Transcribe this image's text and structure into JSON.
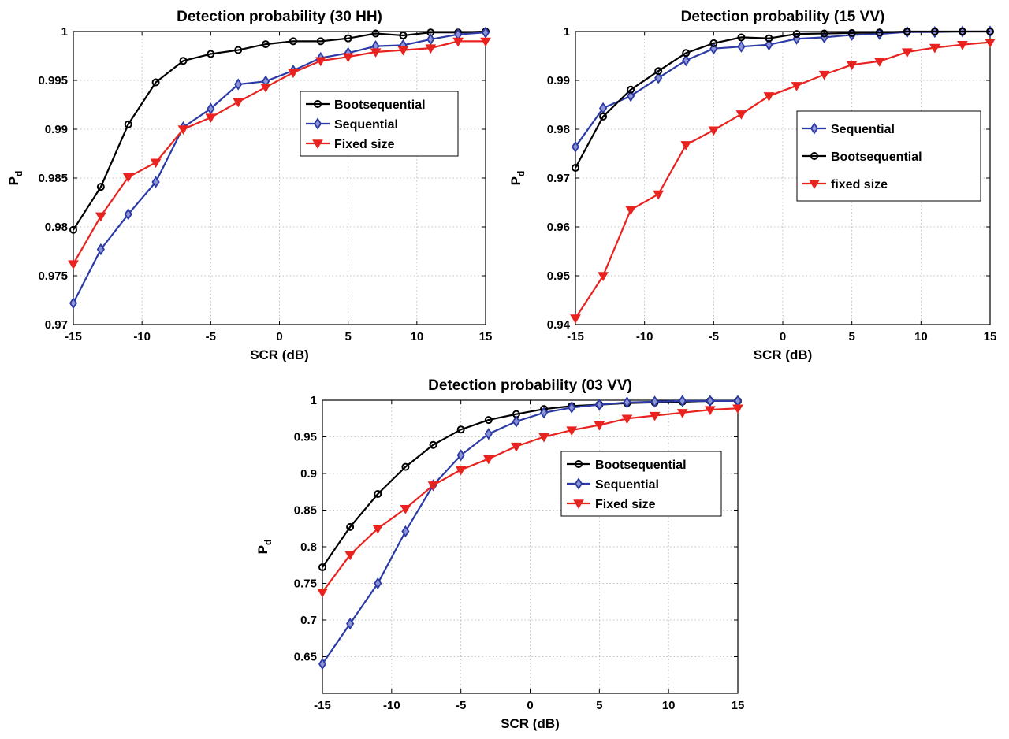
{
  "chart_data": [
    {
      "type": "line",
      "title": "Detection probability (30 HH)",
      "xlabel": "SCR (dB)",
      "ylabel": "P",
      "ylabel_sub": "d",
      "xlim": [
        -15,
        15
      ],
      "ylim": [
        0.97,
        1
      ],
      "xticks": [
        -15,
        -10,
        -5,
        0,
        5,
        10,
        15
      ],
      "yticks": [
        0.97,
        0.975,
        0.98,
        0.985,
        0.99,
        0.995,
        1
      ],
      "ytick_labels": [
        "0.97",
        "0.975",
        "0.98",
        "0.985",
        "0.99",
        "0.995",
        "1"
      ],
      "grid": true,
      "legend_position": "center-right",
      "series": [
        {
          "name": "Bootsequential",
          "color": "#000000",
          "marker": "circle",
          "x": [
            -15,
            -13,
            -11,
            -9,
            -7,
            -5,
            -3,
            -1,
            1,
            3,
            5,
            7,
            9,
            11,
            13,
            15
          ],
          "y": [
            0.9797,
            0.9841,
            0.9905,
            0.9948,
            0.997,
            0.9977,
            0.9981,
            0.9987,
            0.999,
            0.999,
            0.9993,
            0.9998,
            0.9996,
            0.9999,
            0.9999,
            1.0
          ]
        },
        {
          "name": "Sequential",
          "color": "#2b3aa5",
          "marker": "diamond",
          "x": [
            -15,
            -13,
            -11,
            -9,
            -7,
            -5,
            -3,
            -1,
            1,
            3,
            5,
            7,
            9,
            11,
            13,
            15
          ],
          "y": [
            0.9722,
            0.9777,
            0.9813,
            0.9846,
            0.9902,
            0.9921,
            0.9946,
            0.9949,
            0.996,
            0.9973,
            0.9978,
            0.9985,
            0.9986,
            0.9992,
            0.9997,
            0.9999
          ]
        },
        {
          "name": "Fixed size",
          "color": "#e8231f",
          "marker": "triangle-down",
          "x": [
            -15,
            -13,
            -11,
            -9,
            -7,
            -5,
            -3,
            -1,
            1,
            3,
            5,
            7,
            9,
            11,
            13,
            15
          ],
          "y": [
            0.9762,
            0.9811,
            0.9851,
            0.9866,
            0.99,
            0.9912,
            0.9928,
            0.9943,
            0.9958,
            0.997,
            0.9974,
            0.9979,
            0.9981,
            0.9983,
            0.999,
            0.999
          ]
        }
      ]
    },
    {
      "type": "line",
      "title": "Detection probability (15 VV)",
      "xlabel": "SCR (dB)",
      "ylabel": "P",
      "ylabel_sub": "d",
      "xlim": [
        -15,
        15
      ],
      "ylim": [
        0.94,
        1
      ],
      "xticks": [
        -15,
        -10,
        -5,
        0,
        5,
        10,
        15
      ],
      "yticks": [
        0.94,
        0.95,
        0.96,
        0.97,
        0.98,
        0.99,
        1
      ],
      "ytick_labels": [
        "0.94",
        "0.95",
        "0.96",
        "0.97",
        "0.98",
        "0.99",
        "1"
      ],
      "grid": true,
      "legend_position": "center-right",
      "series": [
        {
          "name": "Sequential",
          "color": "#2b3aa5",
          "marker": "diamond",
          "x": [
            -15,
            -13,
            -11,
            -9,
            -7,
            -5,
            -3,
            -1,
            1,
            3,
            5,
            7,
            9,
            11,
            13,
            15
          ],
          "y": [
            0.9764,
            0.9843,
            0.9868,
            0.9905,
            0.9941,
            0.9965,
            0.9969,
            0.9973,
            0.9985,
            0.9988,
            0.9993,
            0.9995,
            0.9999,
            0.9999,
            1.0,
            1.0
          ]
        },
        {
          "name": "Bootsequential",
          "color": "#000000",
          "marker": "circle",
          "x": [
            -15,
            -13,
            -11,
            -9,
            -7,
            -5,
            -3,
            -1,
            1,
            3,
            5,
            7,
            9,
            11,
            13,
            15
          ],
          "y": [
            0.9721,
            0.9826,
            0.9881,
            0.9919,
            0.9956,
            0.9976,
            0.9988,
            0.9986,
            0.9995,
            0.9996,
            0.9997,
            0.9998,
            1.0,
            1.0,
            1.0,
            1.0
          ]
        },
        {
          "name": "fixed size",
          "color": "#e8231f",
          "marker": "triangle-down",
          "x": [
            -15,
            -13,
            -11,
            -9,
            -7,
            -5,
            -3,
            -1,
            1,
            3,
            5,
            7,
            9,
            11,
            13,
            15
          ],
          "y": [
            0.9413,
            0.95,
            0.9635,
            0.9667,
            0.9768,
            0.9798,
            0.9831,
            0.9868,
            0.9889,
            0.9912,
            0.9932,
            0.9939,
            0.9958,
            0.9967,
            0.9973,
            0.9978
          ]
        }
      ]
    },
    {
      "type": "line",
      "title": "Detection probability (03 VV)",
      "xlabel": "SCR (dB)",
      "ylabel": "P",
      "ylabel_sub": "d",
      "xlim": [
        -15,
        15
      ],
      "ylim": [
        0.6,
        1
      ],
      "xticks": [
        -15,
        -10,
        -5,
        0,
        5,
        10,
        15
      ],
      "yticks": [
        0.65,
        0.7,
        0.75,
        0.8,
        0.85,
        0.9,
        0.95,
        1
      ],
      "ytick_labels": [
        "0.65",
        "0.7",
        "0.75",
        "0.8",
        "0.85",
        "0.9",
        "0.95",
        "1"
      ],
      "grid": true,
      "legend_position": "center-right",
      "series": [
        {
          "name": "Bootsequential",
          "color": "#000000",
          "marker": "circle",
          "x": [
            -15,
            -13,
            -11,
            -9,
            -7,
            -5,
            -3,
            -1,
            1,
            3,
            5,
            7,
            9,
            11,
            13,
            15
          ],
          "y": [
            0.772,
            0.827,
            0.872,
            0.909,
            0.939,
            0.96,
            0.973,
            0.981,
            0.988,
            0.992,
            0.994,
            0.996,
            0.997,
            0.998,
            0.999,
            0.999
          ]
        },
        {
          "name": "Sequential",
          "color": "#2b3aa5",
          "marker": "diamond",
          "x": [
            -15,
            -13,
            -11,
            -9,
            -7,
            -5,
            -3,
            -1,
            1,
            3,
            5,
            7,
            9,
            11,
            13,
            15
          ],
          "y": [
            0.64,
            0.695,
            0.75,
            0.821,
            0.884,
            0.925,
            0.954,
            0.971,
            0.983,
            0.99,
            0.994,
            0.997,
            0.998,
            0.999,
            0.999,
            0.999
          ]
        },
        {
          "name": "Fixed size",
          "color": "#e8231f",
          "marker": "triangle-down",
          "x": [
            -15,
            -13,
            -11,
            -9,
            -7,
            -5,
            -3,
            -1,
            1,
            3,
            5,
            7,
            9,
            11,
            13,
            15
          ],
          "y": [
            0.738,
            0.789,
            0.825,
            0.852,
            0.884,
            0.905,
            0.92,
            0.937,
            0.95,
            0.959,
            0.966,
            0.975,
            0.979,
            0.983,
            0.987,
            0.989
          ]
        }
      ]
    }
  ]
}
